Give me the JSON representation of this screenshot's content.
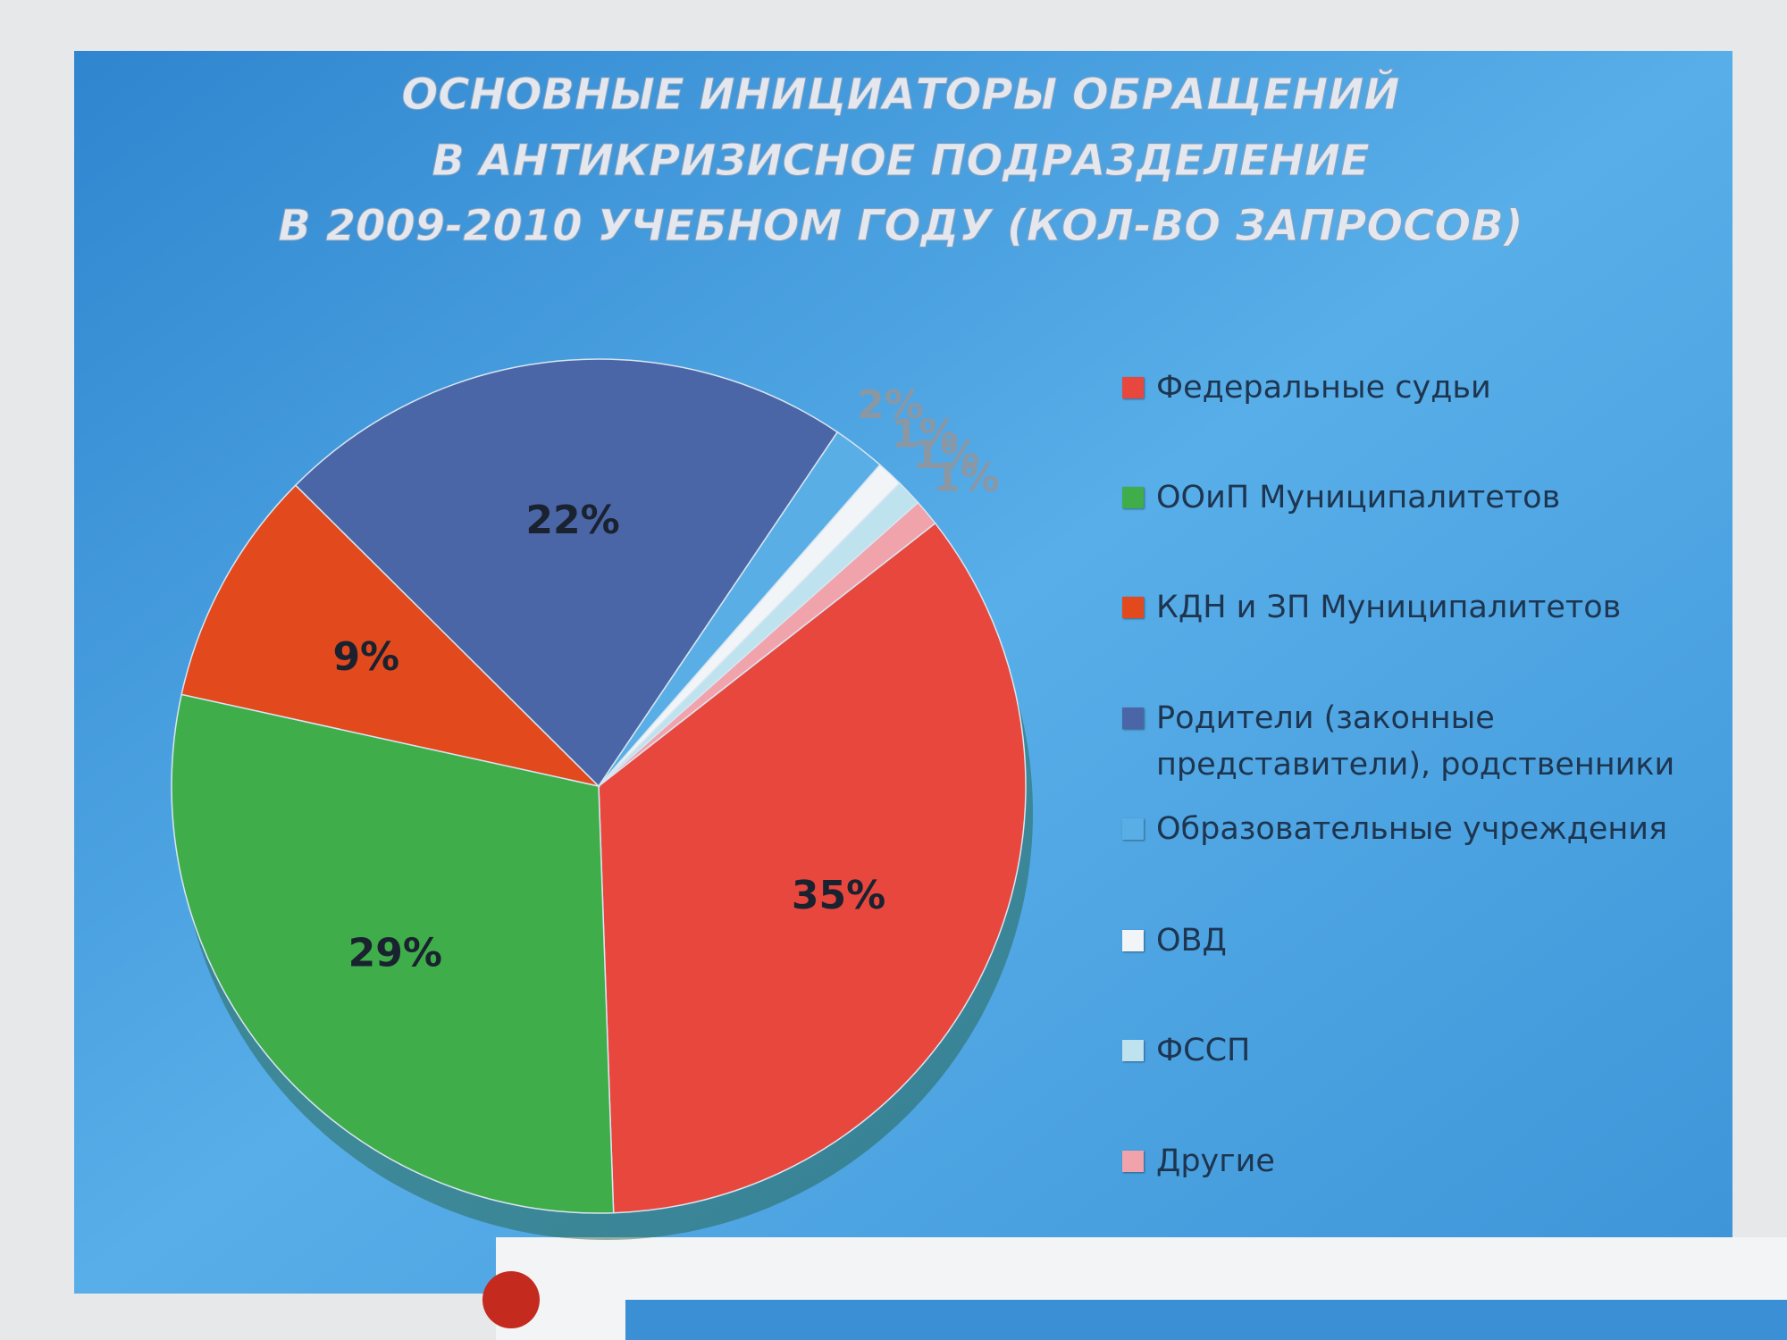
{
  "chart_data": {
    "type": "pie",
    "title": [
      "ОСНОВНЫЕ ИНИЦИАТОРЫ ОБРАЩЕНИЙ",
      "В АНТИКРИЗИСНОЕ ПОДРАЗДЕЛЕНИЕ",
      "В 2009-2010 УЧЕБНОМ ГОДУ (КОЛ-ВО ЗАПРОСОВ)"
    ],
    "categories": [
      "Федеральные судьи",
      "ООиП Муниципалитетов",
      "КДН и ЗП Муниципалитетов",
      "Родители (законные представители), родственники",
      "Образовательные учреждения",
      "ОВД",
      "ФССП",
      "Другие"
    ],
    "values": [
      35,
      29,
      9,
      22,
      2,
      1,
      1,
      1
    ],
    "value_labels": [
      "35%",
      "29%",
      "9%",
      "22%",
      "2%",
      "1%",
      "1%",
      "1%"
    ],
    "colors": [
      "#e8473e",
      "#3fae4a",
      "#e2491c",
      "#4b66a6",
      "#5aaee6",
      "#f2f5f7",
      "#bfe2ef",
      "#f0a3ab"
    ],
    "legend": "right"
  }
}
